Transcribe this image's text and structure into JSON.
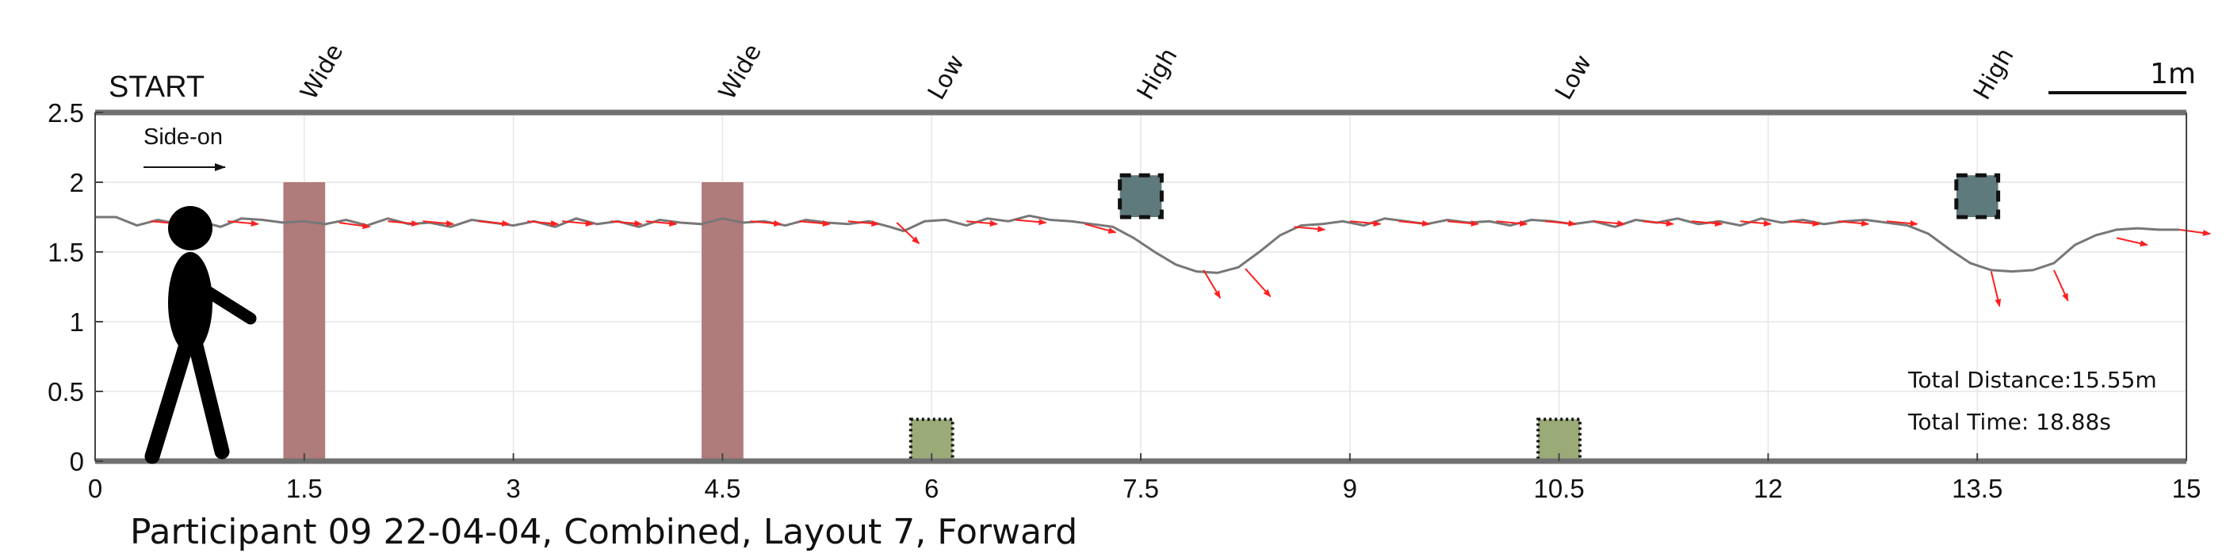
{
  "chart_data": {
    "type": "line",
    "xlim": [
      0,
      15
    ],
    "ylim": [
      0,
      2.5
    ],
    "grid": true,
    "x_ticks": [
      0,
      1.5,
      3,
      4.5,
      6,
      7.5,
      9,
      10.5,
      12,
      13.5,
      15
    ],
    "x_tick_labels": [
      "0",
      "1.5",
      "3",
      "4.5",
      "6",
      "7.5",
      "9",
      "10.5",
      "12",
      "13.5",
      "15"
    ],
    "y_ticks": [
      0,
      0.5,
      1,
      1.5,
      2,
      2.5
    ],
    "y_tick_labels": [
      "0",
      "0.5",
      "1",
      "1.5",
      "2",
      "2.5"
    ],
    "start_label": "START",
    "direction_label": "Side-on",
    "scale_label": "1m",
    "caption": "Participant 09 22-04-04, Combined, Layout 7, Forward",
    "stats": {
      "distance": "Total Distance:15.55m",
      "time": "Total Time: 18.88s"
    },
    "obstacles": [
      {
        "label": "Wide",
        "kind": "wide",
        "x0": 1.35,
        "x1": 1.65,
        "y0": 0,
        "y1": 2.0,
        "color": "#b07b7b"
      },
      {
        "label": "Wide",
        "kind": "wide",
        "x0": 4.35,
        "x1": 4.65,
        "y0": 0,
        "y1": 2.0,
        "color": "#b07b7b"
      },
      {
        "label": "Low",
        "kind": "low",
        "x0": 5.85,
        "x1": 6.15,
        "y0": 0,
        "y1": 0.3,
        "color": "#9aab78"
      },
      {
        "label": "High",
        "kind": "high",
        "x0": 7.35,
        "x1": 7.65,
        "y0": 1.75,
        "y1": 2.05,
        "color": "#5f7a7c"
      },
      {
        "label": "Low",
        "kind": "low",
        "x0": 10.35,
        "x1": 10.65,
        "y0": 0,
        "y1": 0.3,
        "color": "#9aab78"
      },
      {
        "label": "High",
        "kind": "high",
        "x0": 13.35,
        "x1": 13.65,
        "y0": 1.75,
        "y1": 2.05,
        "color": "#5f7a7c"
      }
    ],
    "series": [
      {
        "name": "head trajectory",
        "color": "#777777",
        "x": [
          0,
          0.15,
          0.3,
          0.45,
          0.6,
          0.75,
          0.9,
          1.05,
          1.2,
          1.35,
          1.5,
          1.65,
          1.8,
          1.95,
          2.1,
          2.25,
          2.4,
          2.55,
          2.7,
          2.85,
          3.0,
          3.15,
          3.3,
          3.45,
          3.6,
          3.75,
          3.9,
          4.05,
          4.2,
          4.35,
          4.5,
          4.65,
          4.8,
          4.95,
          5.1,
          5.25,
          5.4,
          5.55,
          5.7,
          5.8,
          5.95,
          6.1,
          6.25,
          6.4,
          6.55,
          6.7,
          6.85,
          7.0,
          7.15,
          7.3,
          7.45,
          7.6,
          7.75,
          7.9,
          8.05,
          8.2,
          8.35,
          8.5,
          8.65,
          8.8,
          8.95,
          9.1,
          9.25,
          9.4,
          9.55,
          9.7,
          9.85,
          10.0,
          10.15,
          10.3,
          10.45,
          10.6,
          10.75,
          10.9,
          11.05,
          11.2,
          11.35,
          11.5,
          11.65,
          11.8,
          11.95,
          12.1,
          12.25,
          12.4,
          12.55,
          12.7,
          12.85,
          13.0,
          13.15,
          13.3,
          13.45,
          13.6,
          13.75,
          13.9,
          14.05,
          14.2,
          14.35,
          14.5,
          14.65,
          14.8,
          14.95
        ],
        "y": [
          1.75,
          1.75,
          1.69,
          1.73,
          1.7,
          1.72,
          1.68,
          1.74,
          1.73,
          1.71,
          1.72,
          1.7,
          1.73,
          1.69,
          1.74,
          1.7,
          1.71,
          1.68,
          1.73,
          1.71,
          1.69,
          1.72,
          1.68,
          1.74,
          1.7,
          1.72,
          1.68,
          1.73,
          1.71,
          1.7,
          1.74,
          1.71,
          1.72,
          1.69,
          1.73,
          1.71,
          1.7,
          1.72,
          1.68,
          1.65,
          1.72,
          1.73,
          1.69,
          1.74,
          1.72,
          1.76,
          1.73,
          1.72,
          1.7,
          1.68,
          1.6,
          1.5,
          1.41,
          1.36,
          1.35,
          1.39,
          1.5,
          1.62,
          1.69,
          1.7,
          1.72,
          1.69,
          1.74,
          1.72,
          1.7,
          1.73,
          1.71,
          1.72,
          1.69,
          1.73,
          1.72,
          1.7,
          1.72,
          1.68,
          1.73,
          1.71,
          1.74,
          1.7,
          1.72,
          1.69,
          1.74,
          1.71,
          1.73,
          1.7,
          1.72,
          1.73,
          1.71,
          1.69,
          1.63,
          1.52,
          1.42,
          1.37,
          1.36,
          1.37,
          1.42,
          1.55,
          1.62,
          1.66,
          1.67,
          1.66,
          1.66
        ]
      }
    ],
    "heading_arrows": [
      {
        "x": 0.4,
        "y": 1.72,
        "dx": 0.22,
        "dy": -0.02
      },
      {
        "x": 0.95,
        "y": 1.72,
        "dx": 0.22,
        "dy": -0.02
      },
      {
        "x": 1.75,
        "y": 1.71,
        "dx": 0.22,
        "dy": -0.03
      },
      {
        "x": 2.1,
        "y": 1.72,
        "dx": 0.22,
        "dy": -0.02
      },
      {
        "x": 2.35,
        "y": 1.72,
        "dx": 0.22,
        "dy": -0.02
      },
      {
        "x": 2.75,
        "y": 1.72,
        "dx": 0.22,
        "dy": -0.02
      },
      {
        "x": 3.1,
        "y": 1.72,
        "dx": 0.22,
        "dy": -0.02
      },
      {
        "x": 3.35,
        "y": 1.72,
        "dx": 0.22,
        "dy": -0.02
      },
      {
        "x": 3.7,
        "y": 1.72,
        "dx": 0.22,
        "dy": -0.02
      },
      {
        "x": 3.95,
        "y": 1.72,
        "dx": 0.22,
        "dy": -0.02
      },
      {
        "x": 4.7,
        "y": 1.72,
        "dx": 0.22,
        "dy": -0.02
      },
      {
        "x": 5.05,
        "y": 1.72,
        "dx": 0.22,
        "dy": -0.02
      },
      {
        "x": 5.4,
        "y": 1.72,
        "dx": 0.22,
        "dy": -0.02
      },
      {
        "x": 5.75,
        "y": 1.71,
        "dx": 0.16,
        "dy": -0.15
      },
      {
        "x": 6.25,
        "y": 1.72,
        "dx": 0.22,
        "dy": -0.02
      },
      {
        "x": 6.6,
        "y": 1.73,
        "dx": 0.22,
        "dy": -0.02
      },
      {
        "x": 7.1,
        "y": 1.7,
        "dx": 0.22,
        "dy": -0.06
      },
      {
        "x": 7.95,
        "y": 1.37,
        "dx": 0.12,
        "dy": -0.2
      },
      {
        "x": 8.25,
        "y": 1.38,
        "dx": 0.18,
        "dy": -0.2
      },
      {
        "x": 8.6,
        "y": 1.68,
        "dx": 0.22,
        "dy": -0.02
      },
      {
        "x": 9.0,
        "y": 1.72,
        "dx": 0.22,
        "dy": -0.02
      },
      {
        "x": 9.35,
        "y": 1.72,
        "dx": 0.22,
        "dy": -0.02
      },
      {
        "x": 9.7,
        "y": 1.72,
        "dx": 0.22,
        "dy": -0.02
      },
      {
        "x": 10.05,
        "y": 1.72,
        "dx": 0.22,
        "dy": -0.02
      },
      {
        "x": 10.4,
        "y": 1.72,
        "dx": 0.22,
        "dy": -0.02
      },
      {
        "x": 10.75,
        "y": 1.72,
        "dx": 0.22,
        "dy": -0.02
      },
      {
        "x": 11.1,
        "y": 1.72,
        "dx": 0.22,
        "dy": -0.02
      },
      {
        "x": 11.45,
        "y": 1.72,
        "dx": 0.22,
        "dy": -0.02
      },
      {
        "x": 11.8,
        "y": 1.72,
        "dx": 0.22,
        "dy": -0.02
      },
      {
        "x": 12.15,
        "y": 1.72,
        "dx": 0.22,
        "dy": -0.02
      },
      {
        "x": 12.5,
        "y": 1.72,
        "dx": 0.22,
        "dy": -0.02
      },
      {
        "x": 12.85,
        "y": 1.72,
        "dx": 0.22,
        "dy": -0.02
      },
      {
        "x": 13.6,
        "y": 1.36,
        "dx": 0.06,
        "dy": -0.25
      },
      {
        "x": 14.05,
        "y": 1.37,
        "dx": 0.1,
        "dy": -0.22
      },
      {
        "x": 14.5,
        "y": 1.6,
        "dx": 0.22,
        "dy": -0.05
      },
      {
        "x": 14.95,
        "y": 1.66,
        "dx": 0.22,
        "dy": -0.03
      }
    ]
  }
}
